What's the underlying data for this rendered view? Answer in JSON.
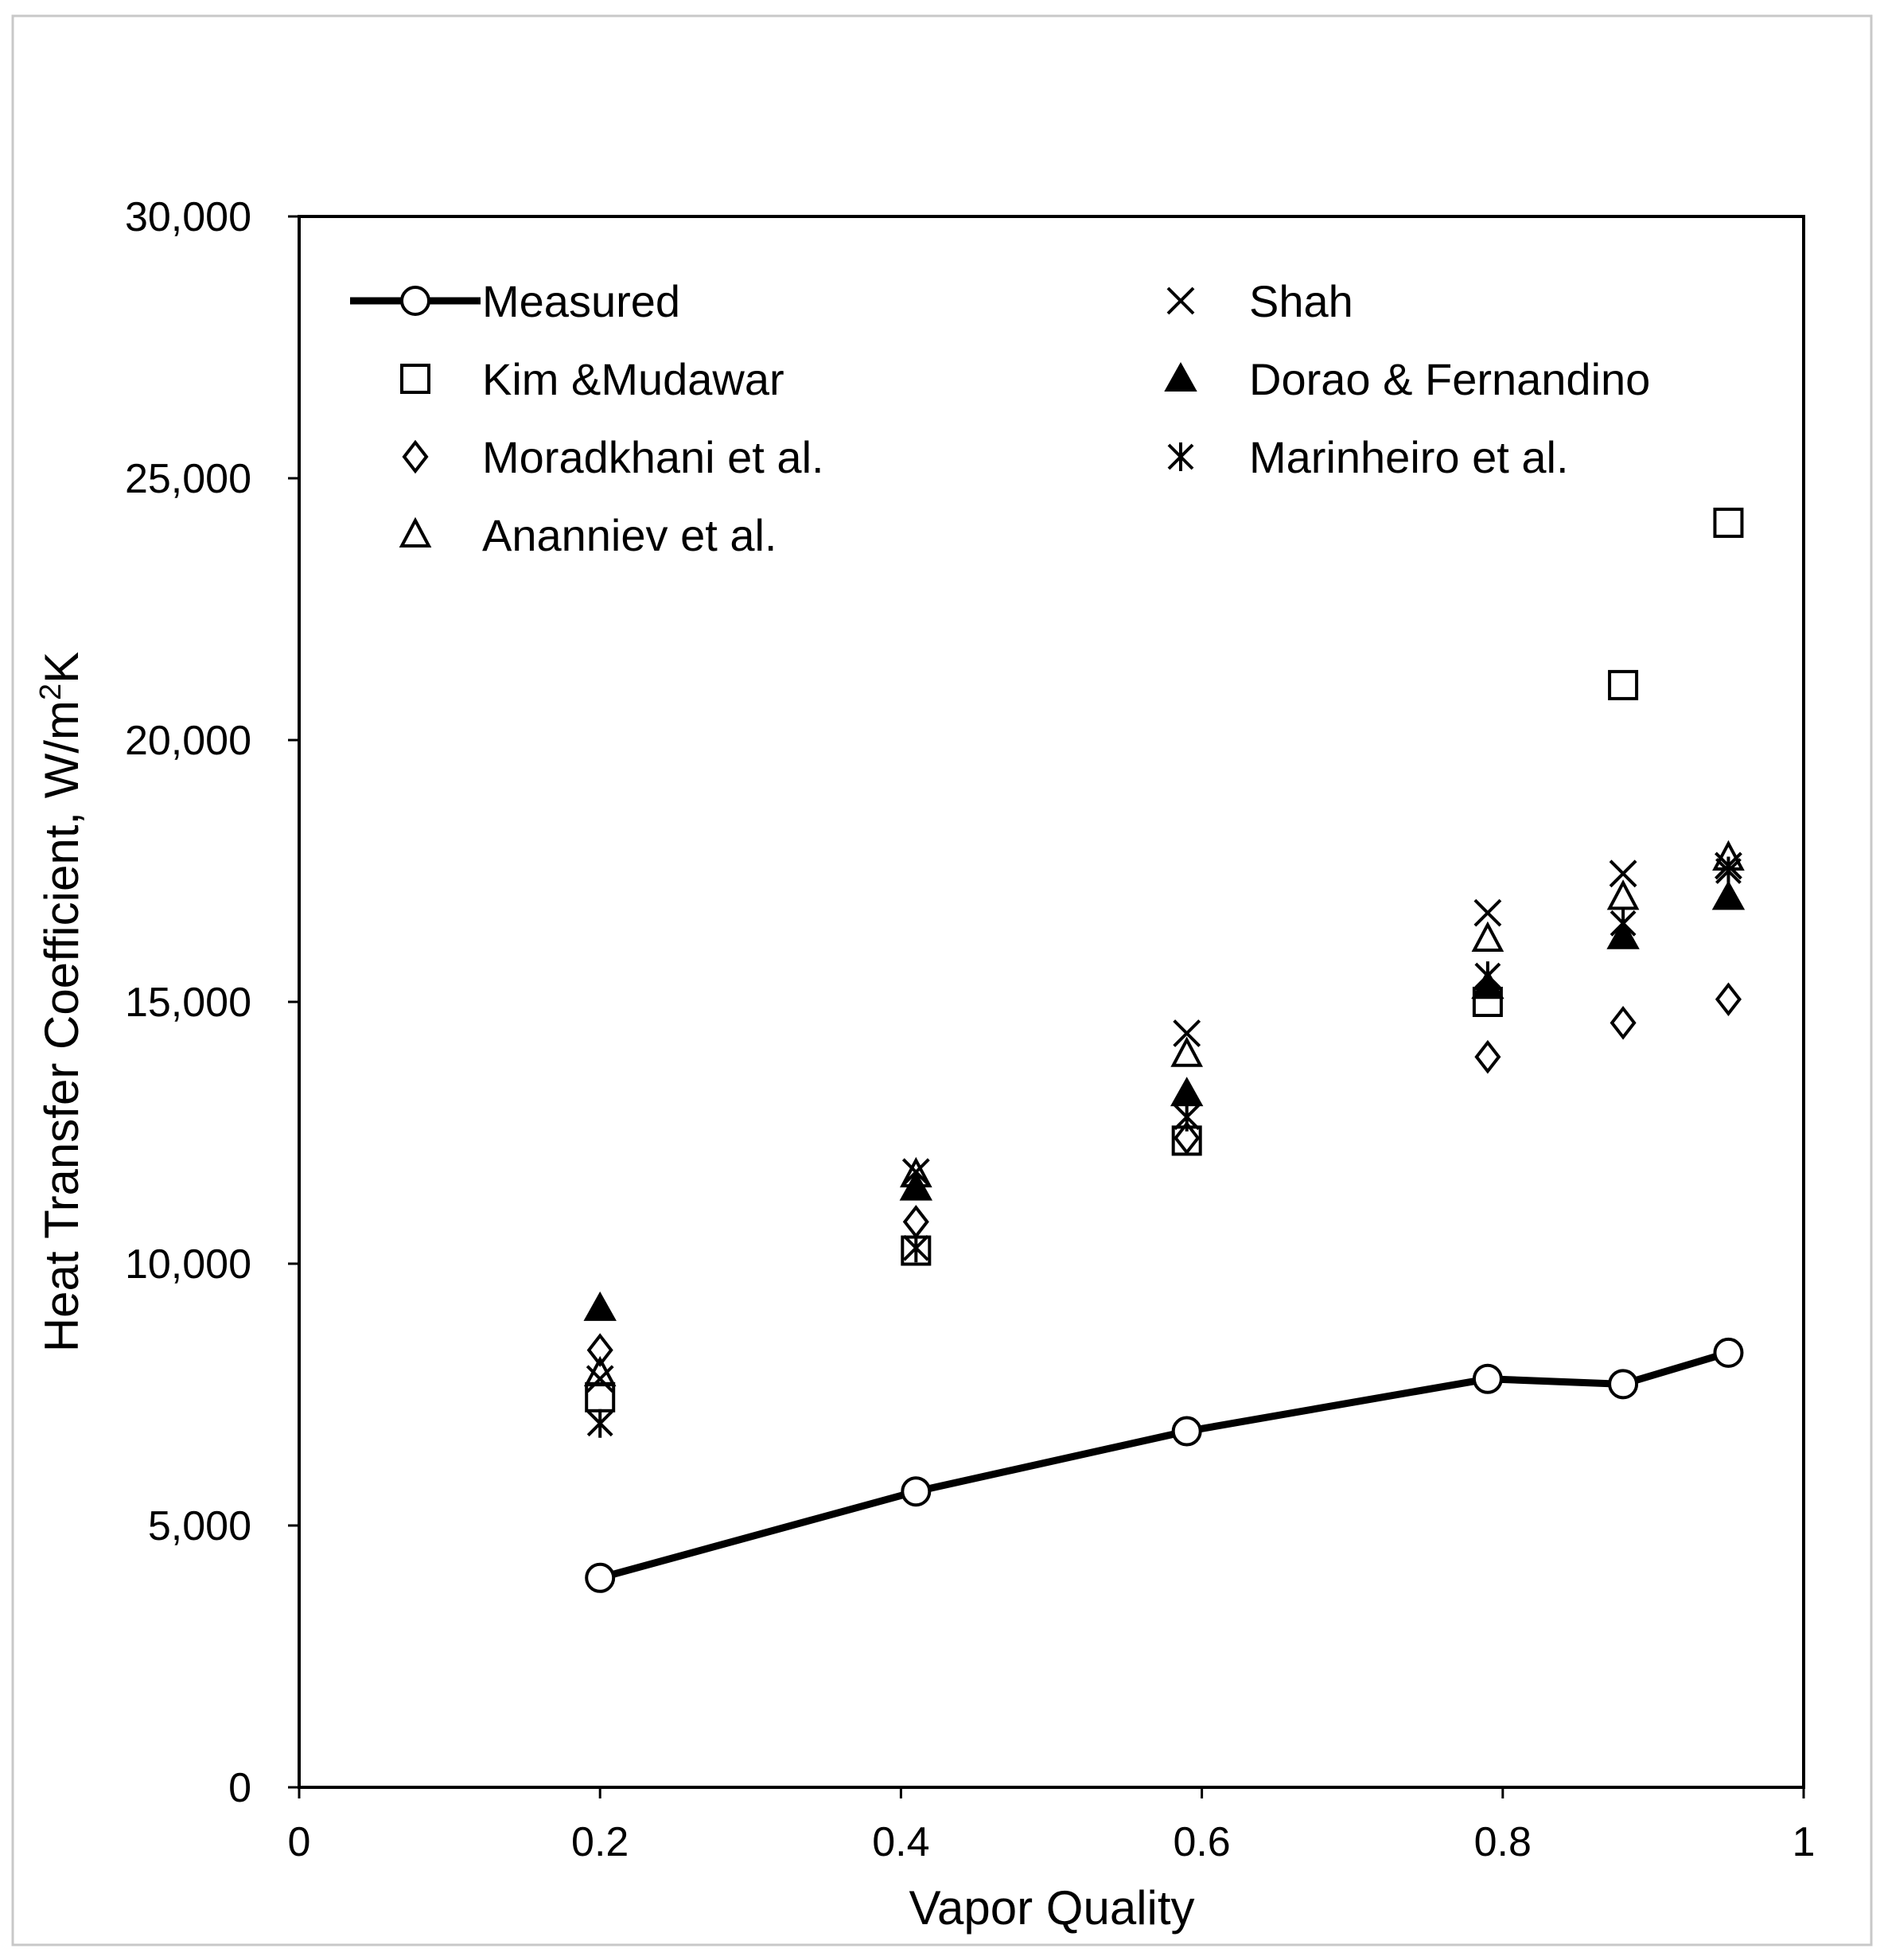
{
  "chart_data": {
    "type": "scatter",
    "title": "",
    "xlabel": "Vapor Quality",
    "ylabel": "Heat Transfer Coefficient, W/m",
    "ylabel_sup": "2",
    "ylabel_suffix": "K",
    "xlim": [
      0,
      1
    ],
    "ylim": [
      0,
      30000
    ],
    "x_ticks": [
      {
        "value": 0,
        "label": "0"
      },
      {
        "value": 0.2,
        "label": "0.2"
      },
      {
        "value": 0.4,
        "label": "0.4"
      },
      {
        "value": 0.6,
        "label": "0.6"
      },
      {
        "value": 0.8,
        "label": "0.8"
      },
      {
        "value": 1,
        "label": "1"
      }
    ],
    "y_ticks": [
      {
        "value": 0,
        "label": "0"
      },
      {
        "value": 5000,
        "label": "5,000"
      },
      {
        "value": 10000,
        "label": "10,000"
      },
      {
        "value": 15000,
        "label": "15,000"
      },
      {
        "value": 20000,
        "label": "20,000"
      },
      {
        "value": 25000,
        "label": "25,000"
      },
      {
        "value": 30000,
        "label": "30,000"
      }
    ],
    "grid": false,
    "legend_position": "top-left inside",
    "series": [
      {
        "name": "Measured",
        "marker": "circle-line",
        "x": [
          0.2,
          0.41,
          0.59,
          0.79,
          0.88,
          0.95
        ],
        "y": [
          4000,
          5650,
          6800,
          7800,
          7700,
          8300
        ]
      },
      {
        "name": "Kim &Mudawar",
        "marker": "square",
        "x": [
          0.2,
          0.41,
          0.59,
          0.79,
          0.88,
          0.95
        ],
        "y": [
          7450,
          10250,
          12350,
          15000,
          21050,
          24150
        ]
      },
      {
        "name": "Moradkhani et al.",
        "marker": "diamond",
        "x": [
          0.2,
          0.41,
          0.59,
          0.79,
          0.88,
          0.95
        ],
        "y": [
          8350,
          10800,
          12400,
          13950,
          14600,
          15050
        ]
      },
      {
        "name": "Ananniev et al.",
        "marker": "triangle-open",
        "x": [
          0.2,
          0.41,
          0.59,
          0.79,
          0.88,
          0.95
        ],
        "y": [
          7900,
          11700,
          14000,
          16200,
          17000,
          17750
        ]
      },
      {
        "name": "Shah",
        "marker": "x",
        "x": [
          0.2,
          0.41,
          0.59,
          0.79,
          0.88,
          0.95
        ],
        "y": [
          7800,
          11750,
          14400,
          16700,
          17450,
          17600
        ]
      },
      {
        "name": "Dorao & Fernandino",
        "marker": "triangle-filled",
        "x": [
          0.2,
          0.41,
          0.59,
          0.79,
          0.88,
          0.95
        ],
        "y": [
          9150,
          11450,
          13250,
          15300,
          16250,
          17000
        ]
      },
      {
        "name": "Marinheiro et al.",
        "marker": "asterisk",
        "x": [
          0.2,
          0.41,
          0.59,
          0.79,
          0.88,
          0.95
        ],
        "y": [
          6950,
          10300,
          12800,
          15500,
          16500,
          17500
        ]
      }
    ]
  }
}
